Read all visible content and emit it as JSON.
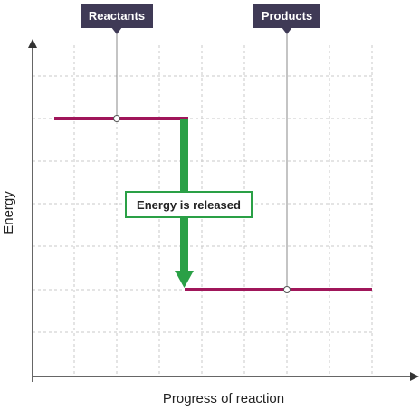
{
  "diagram": {
    "labels": {
      "reactants": "Reactants",
      "products": "Products",
      "energy_change": "Energy is released"
    },
    "axes": {
      "x_label": "Progress of reaction",
      "y_label": "Energy"
    },
    "colors": {
      "level_line": "#a0165a",
      "arrow": "#2aa046",
      "callout_bg": "#3f3a56",
      "grid": "#c8c8c8",
      "axis": "#333333",
      "leader": "#888888"
    }
  }
}
